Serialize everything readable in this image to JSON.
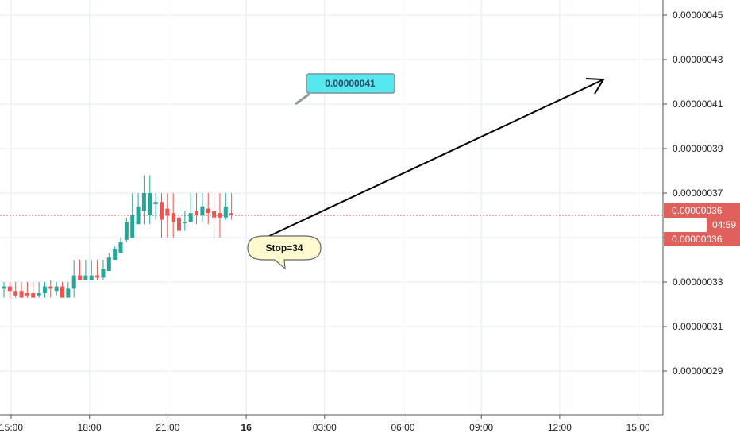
{
  "chart_data": {
    "type": "candlestick",
    "x_ticks": [
      "15:00",
      "18:00",
      "21:00",
      "16",
      "03:00",
      "06:00",
      "09:00",
      "12:00",
      "15:00"
    ],
    "x_ticks_bold": [
      false,
      false,
      false,
      true,
      false,
      false,
      false,
      false,
      false
    ],
    "y_ticks": [
      "0.00000045",
      "0.00000043",
      "0.00000041",
      "0.00000039",
      "0.00000037",
      "0.00000035",
      "0.00000033",
      "0.00000031",
      "0.00000029"
    ],
    "y_range": [
      2.8e-07,
      4.55e-07
    ],
    "grid": true,
    "current_price": {
      "label_top": "0.00000036",
      "countdown": "04:59",
      "label_bottom": "0.00000036",
      "value": 3.6e-07
    },
    "candles": [
      {
        "o": 3.27e-07,
        "h": 3.3e-07,
        "l": 3.23e-07,
        "c": 3.28e-07
      },
      {
        "o": 3.28e-07,
        "h": 3.3e-07,
        "l": 3.23e-07,
        "c": 3.26e-07
      },
      {
        "o": 3.26e-07,
        "h": 3.3e-07,
        "l": 3.23e-07,
        "c": 3.24e-07
      },
      {
        "o": 3.26e-07,
        "h": 3.3e-07,
        "l": 3.23e-07,
        "c": 3.23e-07
      },
      {
        "o": 3.25e-07,
        "h": 3.3e-07,
        "l": 3.23e-07,
        "c": 3.24e-07
      },
      {
        "o": 3.25e-07,
        "h": 3.3e-07,
        "l": 3.23e-07,
        "c": 3.23e-07
      },
      {
        "o": 3.24e-07,
        "h": 3.3e-07,
        "l": 3.23e-07,
        "c": 3.25e-07
      },
      {
        "o": 3.25e-07,
        "h": 3.3e-07,
        "l": 3.23e-07,
        "c": 3.28e-07
      },
      {
        "o": 3.28e-07,
        "h": 3.31e-07,
        "l": 3.23e-07,
        "c": 3.27e-07
      },
      {
        "o": 3.26e-07,
        "h": 3.3e-07,
        "l": 3.24e-07,
        "c": 3.28e-07
      },
      {
        "o": 3.28e-07,
        "h": 3.3e-07,
        "l": 3.23e-07,
        "c": 3.23e-07
      },
      {
        "o": 3.23e-07,
        "h": 3.3e-07,
        "l": 3.23e-07,
        "c": 3.27e-07
      },
      {
        "o": 3.27e-07,
        "h": 3.4e-07,
        "l": 3.23e-07,
        "c": 3.33e-07
      },
      {
        "o": 3.33e-07,
        "h": 3.4e-07,
        "l": 3.31e-07,
        "c": 3.31e-07
      },
      {
        "o": 3.31e-07,
        "h": 3.4e-07,
        "l": 3.31e-07,
        "c": 3.33e-07
      },
      {
        "o": 3.31e-07,
        "h": 3.4e-07,
        "l": 3.31e-07,
        "c": 3.33e-07
      },
      {
        "o": 3.33e-07,
        "h": 3.4e-07,
        "l": 3.31e-07,
        "c": 3.32e-07
      },
      {
        "o": 3.32e-07,
        "h": 3.4e-07,
        "l": 3.31e-07,
        "c": 3.36e-07
      },
      {
        "o": 3.35e-07,
        "h": 3.43e-07,
        "l": 3.35e-07,
        "c": 3.41e-07
      },
      {
        "o": 3.4e-07,
        "h": 3.46e-07,
        "l": 3.4e-07,
        "c": 3.45e-07
      },
      {
        "o": 3.43e-07,
        "h": 3.5e-07,
        "l": 3.43e-07,
        "c": 3.48e-07
      },
      {
        "o": 3.49e-07,
        "h": 3.59e-07,
        "l": 3.48e-07,
        "c": 3.57e-07
      },
      {
        "o": 3.5e-07,
        "h": 3.7e-07,
        "l": 3.5e-07,
        "c": 3.6e-07
      },
      {
        "o": 3.56e-07,
        "h": 3.7e-07,
        "l": 3.56e-07,
        "c": 3.64e-07
      },
      {
        "o": 3.62e-07,
        "h": 3.78e-07,
        "l": 3.56e-07,
        "c": 3.7e-07
      },
      {
        "o": 3.6e-07,
        "h": 3.78e-07,
        "l": 3.56e-07,
        "c": 3.7e-07
      },
      {
        "o": 3.65e-07,
        "h": 3.7e-07,
        "l": 3.58e-07,
        "c": 3.66e-07
      },
      {
        "o": 3.66e-07,
        "h": 3.7e-07,
        "l": 3.5e-07,
        "c": 3.58e-07
      },
      {
        "o": 3.63e-07,
        "h": 3.7e-07,
        "l": 3.5e-07,
        "c": 3.6e-07
      },
      {
        "o": 3.61e-07,
        "h": 3.7e-07,
        "l": 3.5e-07,
        "c": 3.57e-07
      },
      {
        "o": 3.59e-07,
        "h": 3.66e-07,
        "l": 3.5e-07,
        "c": 3.53e-07
      },
      {
        "o": 3.57e-07,
        "h": 3.62e-07,
        "l": 3.53e-07,
        "c": 3.57e-07
      },
      {
        "o": 3.57e-07,
        "h": 3.7e-07,
        "l": 3.57e-07,
        "c": 3.61e-07
      },
      {
        "o": 3.62e-07,
        "h": 3.7e-07,
        "l": 3.56e-07,
        "c": 3.6e-07
      },
      {
        "o": 3.6e-07,
        "h": 3.7e-07,
        "l": 3.57e-07,
        "c": 3.64e-07
      },
      {
        "o": 3.63e-07,
        "h": 3.7e-07,
        "l": 3.56e-07,
        "c": 3.61e-07
      },
      {
        "o": 3.62e-07,
        "h": 3.7e-07,
        "l": 3.5e-07,
        "c": 3.59e-07
      },
      {
        "o": 3.61e-07,
        "h": 3.7e-07,
        "l": 3.5e-07,
        "c": 3.59e-07
      },
      {
        "o": 3.59e-07,
        "h": 3.7e-07,
        "l": 3.58e-07,
        "c": 3.64e-07
      },
      {
        "o": 3.61e-07,
        "h": 3.7e-07,
        "l": 3.58e-07,
        "c": 3.6e-07
      }
    ],
    "annotations": {
      "target_label": "0.00000041",
      "stop_label": "Stop=34"
    }
  },
  "colors": {
    "up": "#26a69a",
    "down": "#ef5350",
    "grid": "#e1ecf2",
    "axis": "#555555",
    "price_tag": "#e0605c",
    "price_line": "#ef5350",
    "callout_cyan": "#55e8ee",
    "callout_cyan_border": "#7f8f9c",
    "callout_stop": "#fffbd0",
    "callout_stop_border": "#666666",
    "arrow": "#000000"
  }
}
